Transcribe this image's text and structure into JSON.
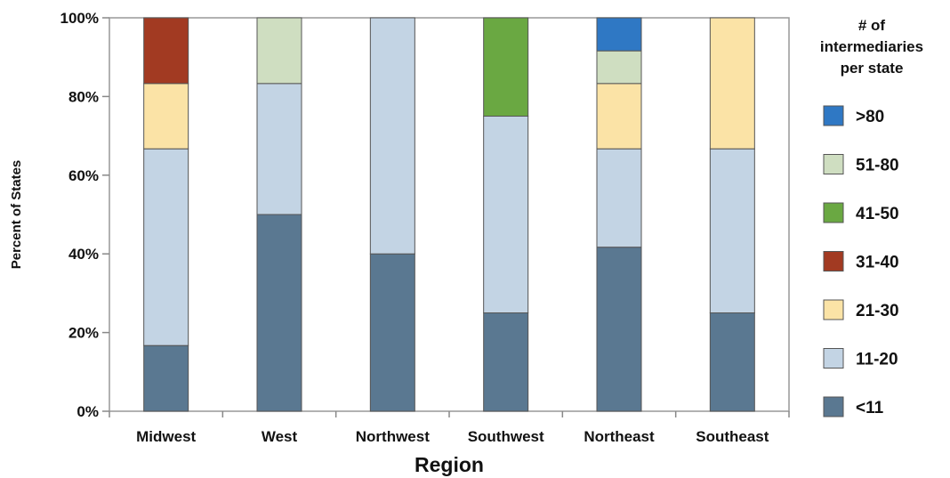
{
  "chart_data": {
    "type": "bar",
    "stacked": true,
    "categories": [
      "Midwest",
      "West",
      "Northwest",
      "Southwest",
      "Northeast",
      "Southeast"
    ],
    "series": [
      {
        "name": "<11",
        "color": "#5a7891",
        "values": [
          16.7,
          50,
          40,
          25,
          41.7,
          25
        ]
      },
      {
        "name": "11-20",
        "color": "#c3d4e4",
        "values": [
          50,
          33.3,
          60,
          50,
          25,
          41.7
        ]
      },
      {
        "name": "21-30",
        "color": "#fbe3a6",
        "values": [
          16.6,
          0,
          0,
          0,
          16.6,
          33.3
        ]
      },
      {
        "name": "31-40",
        "color": "#a23a22",
        "values": [
          16.7,
          0,
          0,
          0,
          0,
          0
        ]
      },
      {
        "name": "41-50",
        "color": "#6aa842",
        "values": [
          0,
          0,
          0,
          25,
          0,
          0
        ]
      },
      {
        "name": "51-80",
        "color": "#cfdec1",
        "values": [
          0,
          16.7,
          0,
          0,
          8.3,
          0
        ]
      },
      {
        "name": ">80",
        "color": "#2f78c4",
        "values": [
          0,
          0,
          0,
          0,
          8.4,
          0
        ]
      }
    ],
    "ylim": [
      0,
      100
    ],
    "yticks": [
      "0%",
      "20%",
      "40%",
      "60%",
      "80%",
      "100%"
    ],
    "ylabel": "Percent of States",
    "xlabel": "Region",
    "legend": {
      "title_lines": [
        "# of",
        "intermediaries",
        "per state"
      ],
      "position": "right",
      "order": [
        ">80",
        "51-80",
        "41-50",
        "31-40",
        "21-30",
        "11-20",
        "<11"
      ]
    },
    "grid": false
  }
}
